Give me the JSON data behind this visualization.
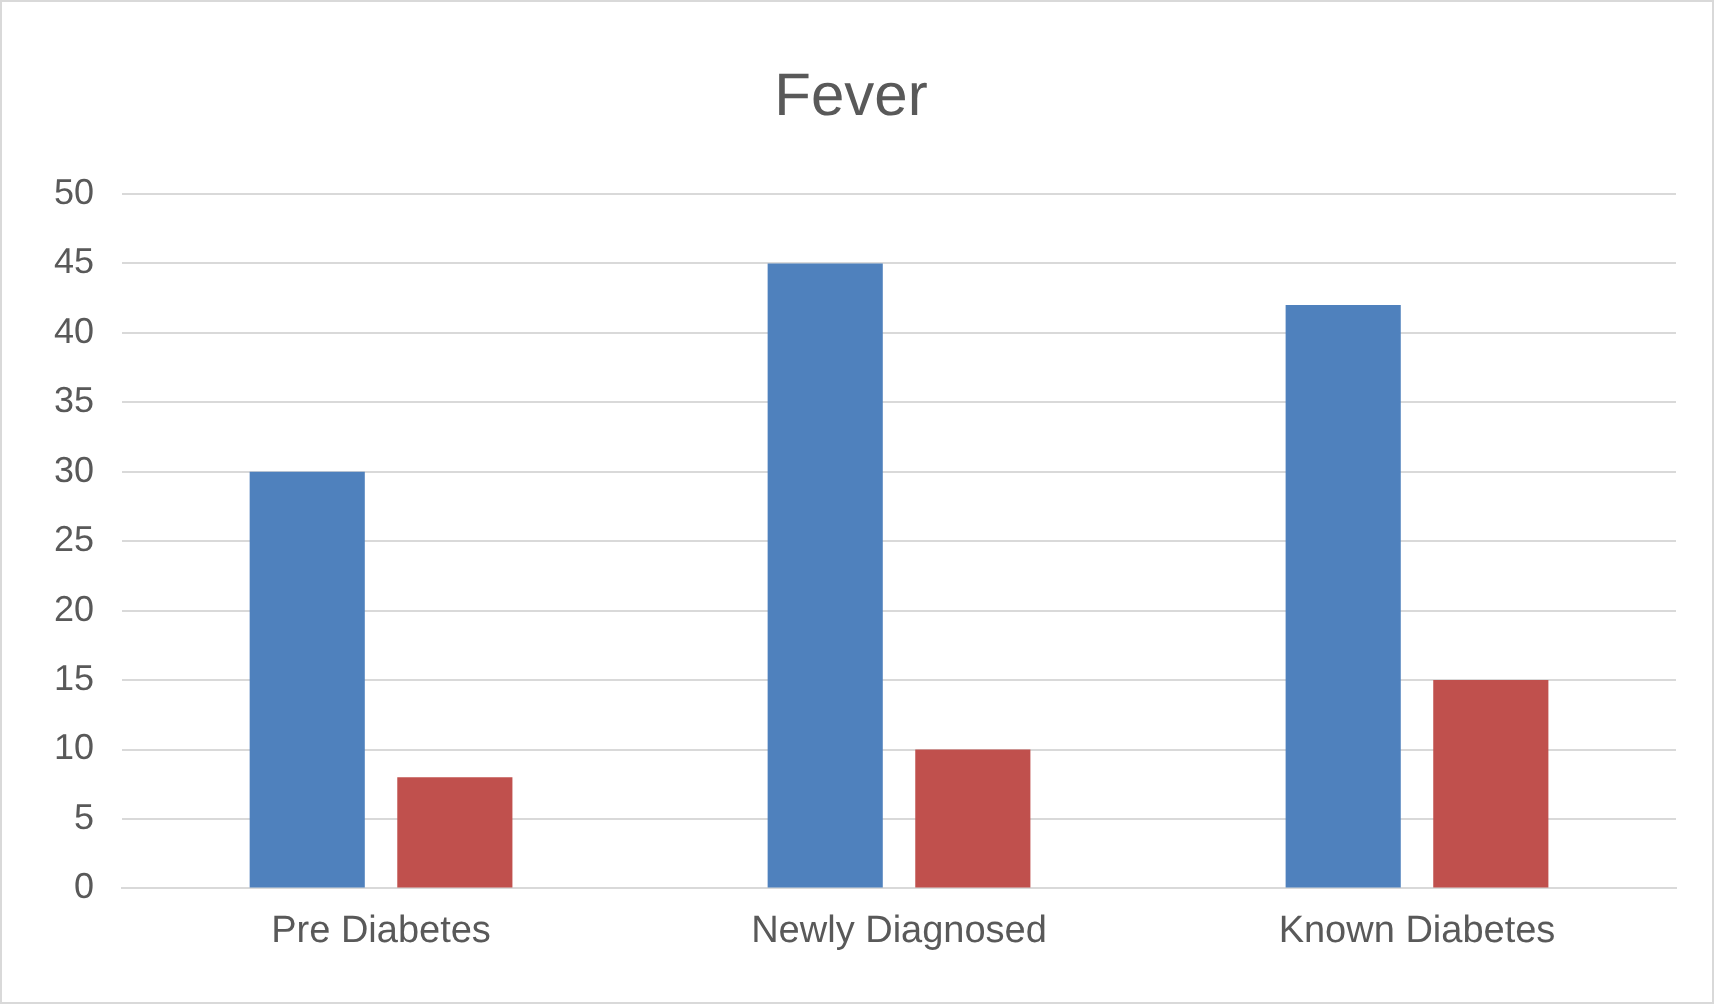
{
  "chart_data": {
    "type": "bar",
    "title": "Fever",
    "categories": [
      "Pre Diabetes",
      "Newly Diagnosed",
      "Known Diabetes"
    ],
    "series": [
      {
        "color": "#4f81bd",
        "values": [
          30,
          45,
          42
        ]
      },
      {
        "color": "#c0504d",
        "values": [
          8,
          10,
          15
        ]
      }
    ],
    "ylim": [
      0,
      50
    ],
    "yticks": [
      0,
      5,
      10,
      15,
      20,
      25,
      30,
      35,
      40,
      45,
      50
    ],
    "grid": "y",
    "legend": false
  }
}
